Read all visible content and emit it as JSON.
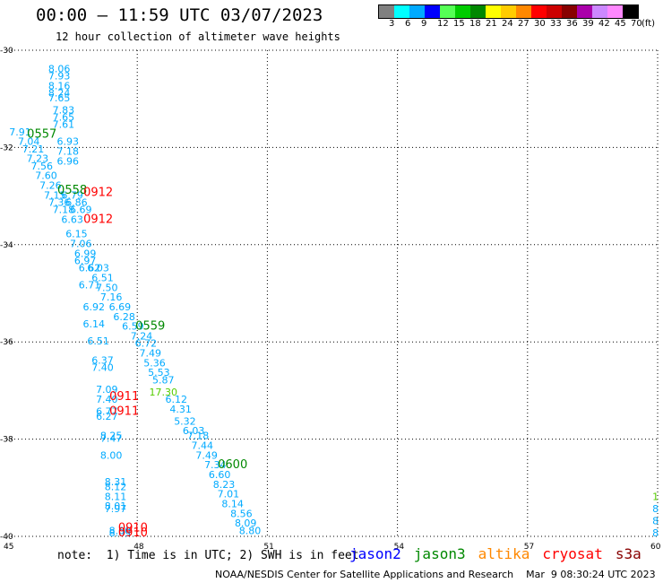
{
  "header": {
    "title": "00:00 – 11:59 UTC 03/07/2023",
    "subtitle": "12 hour collection of altimeter wave heights"
  },
  "color_scale": {
    "colors": [
      "#808080",
      "#00ffff",
      "#00aaff",
      "#0000ff",
      "#55ff55",
      "#00cc00",
      "#008800",
      "#ffff00",
      "#ffcc00",
      "#ff8800",
      "#ff0000",
      "#cc0000",
      "#880000",
      "#aa00aa",
      "#cc88ff",
      "#ff88ff",
      "#000000"
    ],
    "labels": [
      "3",
      "6",
      "9",
      "12",
      "15",
      "18",
      "21",
      "24",
      "27",
      "30",
      "33",
      "36",
      "39",
      "42",
      "45",
      "70",
      "(ft)"
    ]
  },
  "footer": {
    "note": "note:  1) Time is in UTC; 2) SWH is in feet",
    "satellites": [
      {
        "name": "jason2",
        "color": "#0000ff"
      },
      {
        "name": "jason3",
        "color": "#008800"
      },
      {
        "name": "altika",
        "color": "#ff8800"
      },
      {
        "name": "cryosat",
        "color": "#ff0000"
      },
      {
        "name": "s3a",
        "color": "#880000"
      }
    ],
    "credit": "NOAA/NESDIS Center for Satellite Applications and Research    Mar  9 08:30:24 UTC 2023"
  },
  "chart_data": {
    "type": "scatter",
    "title": "00:00 – 11:59 UTC 03/07/2023",
    "xlim": [
      45,
      60
    ],
    "ylim": [
      -40,
      -30
    ],
    "xticks": [
      45,
      48,
      51,
      54,
      57,
      60
    ],
    "yticks": [
      -30,
      -32,
      -34,
      -36,
      -38,
      -40
    ],
    "grid": true,
    "wave_heights": [
      {
        "x": 46.2,
        "y": -30.45,
        "v": "8.06"
      },
      {
        "x": 46.2,
        "y": -30.6,
        "v": "7.93"
      },
      {
        "x": 46.2,
        "y": -30.8,
        "v": "8.16"
      },
      {
        "x": 46.2,
        "y": -30.95,
        "v": "8.24"
      },
      {
        "x": 46.2,
        "y": -31.05,
        "v": "7.65"
      },
      {
        "x": 46.3,
        "y": -31.3,
        "v": "7.83"
      },
      {
        "x": 46.3,
        "y": -31.45,
        "v": "7.65"
      },
      {
        "x": 46.3,
        "y": -31.6,
        "v": "7.61"
      },
      {
        "x": 45.3,
        "y": -31.75,
        "v": "7.91"
      },
      {
        "x": 45.5,
        "y": -31.95,
        "v": "7.04"
      },
      {
        "x": 46.4,
        "y": -31.95,
        "v": "6.93"
      },
      {
        "x": 45.6,
        "y": -32.1,
        "v": "7.21"
      },
      {
        "x": 46.4,
        "y": -32.15,
        "v": "7.18"
      },
      {
        "x": 45.7,
        "y": -32.3,
        "v": "7.23"
      },
      {
        "x": 46.4,
        "y": -32.35,
        "v": "6.96"
      },
      {
        "x": 45.8,
        "y": -32.45,
        "v": "7.56"
      },
      {
        "x": 45.9,
        "y": -32.65,
        "v": "7.60"
      },
      {
        "x": 46.0,
        "y": -32.85,
        "v": "7.26"
      },
      {
        "x": 46.1,
        "y": -33.05,
        "v": "7.15"
      },
      {
        "x": 46.5,
        "y": -33.05,
        "v": "6.79"
      },
      {
        "x": 46.2,
        "y": -33.2,
        "v": "7.36"
      },
      {
        "x": 46.6,
        "y": -33.2,
        "v": "6.86"
      },
      {
        "x": 46.3,
        "y": -33.35,
        "v": "7.18"
      },
      {
        "x": 46.7,
        "y": -33.35,
        "v": "6.69"
      },
      {
        "x": 46.5,
        "y": -33.55,
        "v": "6.63"
      },
      {
        "x": 46.6,
        "y": -33.85,
        "v": "6.15"
      },
      {
        "x": 46.7,
        "y": -34.05,
        "v": "7.06"
      },
      {
        "x": 46.8,
        "y": -34.25,
        "v": "6.99"
      },
      {
        "x": 46.8,
        "y": -34.4,
        "v": "6.97"
      },
      {
        "x": 46.9,
        "y": -34.55,
        "v": "6.62"
      },
      {
        "x": 47.1,
        "y": -34.55,
        "v": "6.03"
      },
      {
        "x": 47.2,
        "y": -34.75,
        "v": "6.51"
      },
      {
        "x": 46.9,
        "y": -34.9,
        "v": "6.71"
      },
      {
        "x": 47.3,
        "y": -34.95,
        "v": "7.50"
      },
      {
        "x": 47.4,
        "y": -35.15,
        "v": "7.16"
      },
      {
        "x": 47.0,
        "y": -35.35,
        "v": "6.92"
      },
      {
        "x": 47.6,
        "y": -35.35,
        "v": "6.69"
      },
      {
        "x": 47.7,
        "y": -35.55,
        "v": "6.28"
      },
      {
        "x": 47.0,
        "y": -35.7,
        "v": "6.14"
      },
      {
        "x": 47.9,
        "y": -35.75,
        "v": "6.59"
      },
      {
        "x": 48.1,
        "y": -35.95,
        "v": "7.24"
      },
      {
        "x": 47.1,
        "y": -36.05,
        "v": "6.51"
      },
      {
        "x": 48.2,
        "y": -36.1,
        "v": "6.72"
      },
      {
        "x": 48.3,
        "y": -36.3,
        "v": "7.49"
      },
      {
        "x": 47.2,
        "y": -36.45,
        "v": "6.37"
      },
      {
        "x": 48.4,
        "y": -36.5,
        "v": "5.36"
      },
      {
        "x": 47.2,
        "y": -36.6,
        "v": "7.40"
      },
      {
        "x": 48.5,
        "y": -36.7,
        "v": "5.53"
      },
      {
        "x": 48.6,
        "y": -36.85,
        "v": "5.87"
      },
      {
        "x": 47.3,
        "y": -37.05,
        "v": "7.09"
      },
      {
        "x": 47.3,
        "y": -37.25,
        "v": "7.40"
      },
      {
        "x": 48.9,
        "y": -37.25,
        "v": "6.12"
      },
      {
        "x": 49.0,
        "y": -37.45,
        "v": "4.31"
      },
      {
        "x": 47.3,
        "y": -37.5,
        "v": "6.77"
      },
      {
        "x": 47.3,
        "y": -37.6,
        "v": "6.27"
      },
      {
        "x": 49.1,
        "y": -37.7,
        "v": "5.32"
      },
      {
        "x": 49.3,
        "y": -37.9,
        "v": "6.03"
      },
      {
        "x": 47.4,
        "y": -38.0,
        "v": "8.25"
      },
      {
        "x": 47.4,
        "y": -38.05,
        "v": "7.47"
      },
      {
        "x": 49.4,
        "y": -38.0,
        "v": "7.18"
      },
      {
        "x": 49.5,
        "y": -38.2,
        "v": "7.44"
      },
      {
        "x": 47.4,
        "y": -38.4,
        "v": "8.00"
      },
      {
        "x": 49.6,
        "y": -38.4,
        "v": "7.49"
      },
      {
        "x": 49.8,
        "y": -38.6,
        "v": "7.34"
      },
      {
        "x": 49.9,
        "y": -38.8,
        "v": "6.60"
      },
      {
        "x": 47.5,
        "y": -38.95,
        "v": "8.31"
      },
      {
        "x": 50.0,
        "y": -39.0,
        "v": "8.23"
      },
      {
        "x": 47.5,
        "y": -39.05,
        "v": "8.12"
      },
      {
        "x": 50.1,
        "y": -39.2,
        "v": "7.01"
      },
      {
        "x": 47.5,
        "y": -39.25,
        "v": "8.11"
      },
      {
        "x": 50.2,
        "y": -39.4,
        "v": "8.14"
      },
      {
        "x": 47.5,
        "y": -39.45,
        "v": "8.01"
      },
      {
        "x": 47.5,
        "y": -39.5,
        "v": "7.97"
      },
      {
        "x": 50.4,
        "y": -39.6,
        "v": "8.56"
      },
      {
        "x": 50.5,
        "y": -39.8,
        "v": "8.09"
      },
      {
        "x": 47.6,
        "y": -39.95,
        "v": "8.00"
      },
      {
        "x": 47.6,
        "y": -40.0,
        "v": "8.05"
      },
      {
        "x": 50.6,
        "y": -39.95,
        "v": "8.80"
      },
      {
        "x": 59.95,
        "y": -39.5,
        "v": "8"
      },
      {
        "x": 59.95,
        "y": -39.75,
        "v": "8"
      },
      {
        "x": 59.95,
        "y": -40.0,
        "v": "8"
      }
    ],
    "wave_heights_green": [
      {
        "x": 48.6,
        "y": -37.1,
        "v": "17.30"
      },
      {
        "x": 59.95,
        "y": -39.25,
        "v": "1"
      }
    ],
    "time_labels": [
      {
        "x": 45.8,
        "y": -31.8,
        "t": "0557",
        "sat": "jason3"
      },
      {
        "x": 46.5,
        "y": -32.95,
        "t": "0558",
        "sat": "jason3"
      },
      {
        "x": 47.1,
        "y": -33.0,
        "t": "0912",
        "sat": "cryosat"
      },
      {
        "x": 47.1,
        "y": -33.55,
        "t": "0912",
        "sat": "cryosat"
      },
      {
        "x": 48.3,
        "y": -35.75,
        "t": "0559",
        "sat": "jason3"
      },
      {
        "x": 47.7,
        "y": -37.2,
        "t": "0911",
        "sat": "cryosat"
      },
      {
        "x": 47.7,
        "y": -37.5,
        "t": "0911",
        "sat": "cryosat"
      },
      {
        "x": 50.2,
        "y": -38.6,
        "t": "0600",
        "sat": "jason3"
      },
      {
        "x": 47.9,
        "y": -39.9,
        "t": "0910",
        "sat": "cryosat"
      },
      {
        "x": 47.9,
        "y": -40.0,
        "t": "0910",
        "sat": "cryosat"
      }
    ]
  }
}
